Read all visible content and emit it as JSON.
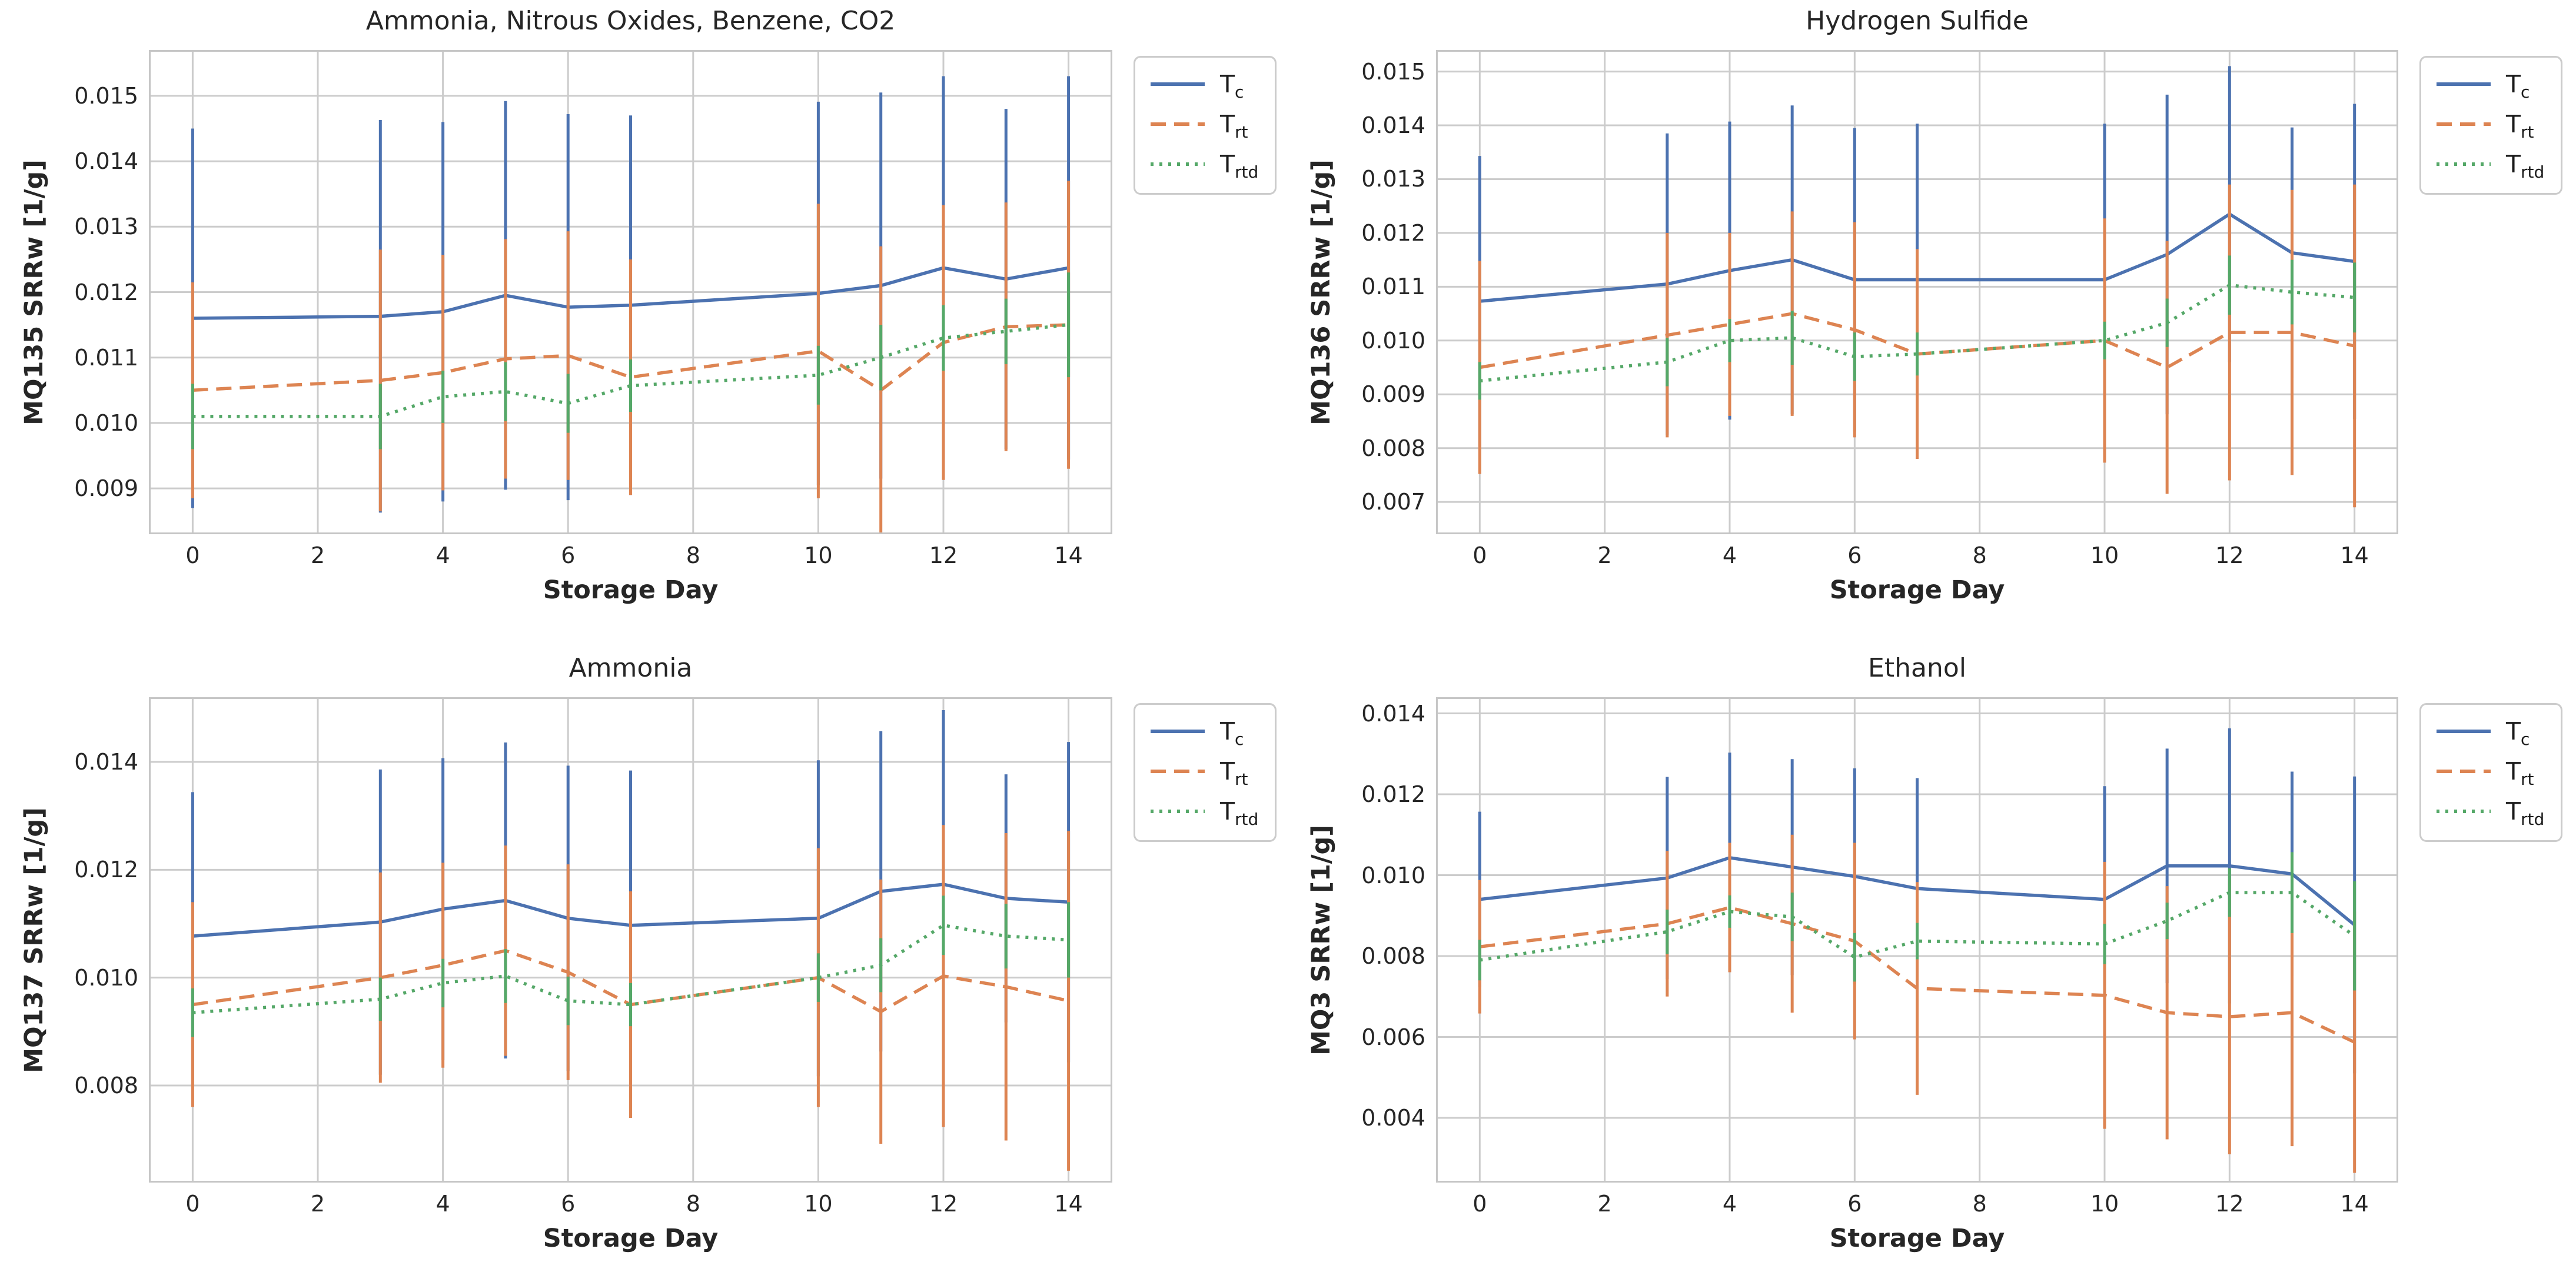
{
  "figure": {
    "background": "#ffffff",
    "grid_color": "#cccccc",
    "spine_color": "#c6c6c6",
    "text_color": "#262626",
    "series_colors": {
      "T_c": "#4C72B0",
      "T_rt": "#DD8452",
      "T_rtd": "#55A868"
    }
  },
  "legend": {
    "items": [
      {
        "name": "T_c",
        "main": "T",
        "sub": "c",
        "color": "#4C72B0",
        "style": "solid"
      },
      {
        "name": "T_rt",
        "main": "T",
        "sub": "rt",
        "color": "#DD8452",
        "style": "dashed"
      },
      {
        "name": "T_rtd",
        "main": "T",
        "sub": "rtd",
        "color": "#55A868",
        "style": "dotted"
      }
    ]
  },
  "x_tick_labels": [
    "0",
    "2",
    "4",
    "6",
    "8",
    "10",
    "12",
    "14"
  ],
  "x_ticks": [
    0,
    2,
    4,
    6,
    8,
    10,
    12,
    14
  ],
  "chart_data": [
    {
      "type": "line",
      "title": "Ammonia, Nitrous Oxides, Benzene, CO2",
      "ylabel": "MQ135 SRRw [1/g]",
      "xlabel": "Storage Day",
      "x": [
        0,
        3,
        4,
        5,
        6,
        7,
        10,
        11,
        12,
        13,
        14
      ],
      "xlim": [
        -0.7,
        14.7
      ],
      "ylim": [
        0.0083,
        0.0157
      ],
      "yticks": [
        0.009,
        0.01,
        0.011,
        0.012,
        0.013,
        0.014,
        0.015
      ],
      "ytick_labels": [
        "0.009",
        "0.010",
        "0.011",
        "0.012",
        "0.013",
        "0.014",
        "0.015"
      ],
      "grid": true,
      "legend_position": "outside-upper-right",
      "series": [
        {
          "name": "T_c",
          "style": "solid",
          "color": "#4C72B0",
          "values": [
            0.0116,
            0.01163,
            0.0117,
            0.01195,
            0.01177,
            0.0118,
            0.01198,
            0.0121,
            0.01237,
            0.0122,
            0.01237
          ],
          "err": [
            0.0029,
            0.003,
            0.0029,
            0.00297,
            0.00295,
            0.0029,
            0.00293,
            0.00295,
            0.00293,
            0.0026,
            0.00293
          ]
        },
        {
          "name": "T_rt",
          "style": "dashed",
          "color": "#DD8452",
          "values": [
            0.0105,
            0.01065,
            0.01077,
            0.01098,
            0.01103,
            0.0107,
            0.0111,
            0.0105,
            0.01123,
            0.01147,
            0.0115
          ],
          "err": [
            0.00165,
            0.002,
            0.0018,
            0.00183,
            0.0019,
            0.0018,
            0.00225,
            0.0022,
            0.0021,
            0.0019,
            0.0022
          ]
        },
        {
          "name": "T_rtd",
          "style": "dotted",
          "color": "#55A868",
          "values": [
            0.0101,
            0.0101,
            0.0104,
            0.01048,
            0.0103,
            0.01057,
            0.01073,
            0.011,
            0.0113,
            0.0114,
            0.0115
          ],
          "err": [
            0.0005,
            0.0005,
            0.0004,
            0.00045,
            0.00045,
            0.0004,
            0.00045,
            0.0005,
            0.0005,
            0.0005,
            0.0008
          ]
        }
      ]
    },
    {
      "type": "line",
      "title": "Hydrogen Sulfide",
      "ylabel": "MQ136 SRRw [1/g]",
      "xlabel": "Storage Day",
      "x": [
        0,
        3,
        4,
        5,
        6,
        7,
        10,
        11,
        12,
        13,
        14
      ],
      "xlim": [
        -0.7,
        14.7
      ],
      "ylim": [
        0.0064,
        0.0154
      ],
      "yticks": [
        0.007,
        0.008,
        0.009,
        0.01,
        0.011,
        0.012,
        0.013,
        0.014,
        0.015
      ],
      "ytick_labels": [
        "0.007",
        "0.008",
        "0.009",
        "0.010",
        "0.011",
        "0.012",
        "0.013",
        "0.014",
        "0.015"
      ],
      "grid": true,
      "legend_position": "outside-upper-right",
      "series": [
        {
          "name": "T_c",
          "style": "solid",
          "color": "#4C72B0",
          "values": [
            0.01073,
            0.01105,
            0.0113,
            0.0115,
            0.01113,
            0.01113,
            0.01113,
            0.0116,
            0.01235,
            0.01163,
            0.01147
          ],
          "err": [
            0.0027,
            0.0028,
            0.00277,
            0.00287,
            0.00282,
            0.0029,
            0.0029,
            0.00297,
            0.00275,
            0.00233,
            0.00293
          ]
        },
        {
          "name": "T_rt",
          "style": "dashed",
          "color": "#DD8452",
          "values": [
            0.0095,
            0.0101,
            0.0103,
            0.0105,
            0.0102,
            0.00975,
            0.01,
            0.0095,
            0.01015,
            0.01015,
            0.0099
          ],
          "err": [
            0.00198,
            0.0019,
            0.0017,
            0.0019,
            0.002,
            0.00195,
            0.00227,
            0.00235,
            0.00275,
            0.00265,
            0.003
          ]
        },
        {
          "name": "T_rtd",
          "style": "dotted",
          "color": "#55A868",
          "values": [
            0.00925,
            0.0096,
            0.01,
            0.01005,
            0.0097,
            0.00975,
            0.01,
            0.01033,
            0.01103,
            0.0109,
            0.0108
          ],
          "err": [
            0.00035,
            0.00045,
            0.0004,
            0.0005,
            0.00045,
            0.0004,
            0.00035,
            0.00045,
            0.00055,
            0.0006,
            0.00065
          ]
        }
      ]
    },
    {
      "type": "line",
      "title": "Ammonia",
      "ylabel": "MQ137 SRRw [1/g]",
      "xlabel": "Storage Day",
      "x": [
        0,
        3,
        4,
        5,
        6,
        7,
        10,
        11,
        12,
        13,
        14
      ],
      "xlim": [
        -0.7,
        14.7
      ],
      "ylim": [
        0.0062,
        0.0152
      ],
      "yticks": [
        0.008,
        0.01,
        0.012,
        0.014
      ],
      "ytick_labels": [
        "0.008",
        "0.010",
        "0.012",
        "0.014"
      ],
      "grid": true,
      "legend_position": "outside-upper-right",
      "series": [
        {
          "name": "T_c",
          "style": "solid",
          "color": "#4C72B0",
          "values": [
            0.01077,
            0.01103,
            0.01127,
            0.01143,
            0.0111,
            0.01097,
            0.0111,
            0.0116,
            0.01173,
            0.01147,
            0.0114
          ],
          "err": [
            0.00267,
            0.00283,
            0.0028,
            0.00293,
            0.00283,
            0.00287,
            0.00293,
            0.00297,
            0.00323,
            0.0023,
            0.00297
          ]
        },
        {
          "name": "T_rt",
          "style": "dashed",
          "color": "#DD8452",
          "values": [
            0.0095,
            0.01,
            0.01023,
            0.0105,
            0.0101,
            0.0095,
            0.01,
            0.00937,
            0.01003,
            0.00983,
            0.00957
          ],
          "err": [
            0.0019,
            0.00195,
            0.0019,
            0.00195,
            0.002,
            0.0021,
            0.0024,
            0.00245,
            0.0028,
            0.00285,
            0.00315
          ]
        },
        {
          "name": "T_rtd",
          "style": "dotted",
          "color": "#55A868",
          "values": [
            0.00935,
            0.0096,
            0.0099,
            0.01003,
            0.00957,
            0.0095,
            0.01,
            0.01023,
            0.01097,
            0.01077,
            0.0107
          ],
          "err": [
            0.00045,
            0.0004,
            0.00045,
            0.0005,
            0.00045,
            0.0004,
            0.00045,
            0.0005,
            0.00055,
            0.0006,
            0.0007
          ]
        }
      ]
    },
    {
      "type": "line",
      "title": "Ethanol",
      "ylabel": "MQ3 SRRw [1/g]",
      "xlabel": "Storage Day",
      "x": [
        0,
        3,
        4,
        5,
        6,
        7,
        10,
        11,
        12,
        13,
        14
      ],
      "xlim": [
        -0.7,
        14.7
      ],
      "ylim": [
        0.0024,
        0.0144
      ],
      "yticks": [
        0.004,
        0.006,
        0.008,
        0.01,
        0.012,
        0.014
      ],
      "ytick_labels": [
        "0.004",
        "0.006",
        "0.008",
        "0.010",
        "0.012",
        "0.014"
      ],
      "grid": true,
      "legend_position": "outside-upper-right",
      "series": [
        {
          "name": "T_c",
          "style": "solid",
          "color": "#4C72B0",
          "values": [
            0.0094,
            0.00993,
            0.01043,
            0.0102,
            0.00997,
            0.00967,
            0.0094,
            0.01023,
            0.01023,
            0.01003,
            0.00877
          ],
          "err": [
            0.00217,
            0.0025,
            0.0026,
            0.00267,
            0.00267,
            0.00273,
            0.0028,
            0.0029,
            0.0034,
            0.00253,
            0.00367
          ]
        },
        {
          "name": "T_rt",
          "style": "dashed",
          "color": "#DD8452",
          "values": [
            0.00823,
            0.0088,
            0.0092,
            0.0088,
            0.00837,
            0.0072,
            0.00703,
            0.0066,
            0.0065,
            0.0066,
            0.00587
          ],
          "err": [
            0.00165,
            0.0018,
            0.0016,
            0.0022,
            0.00243,
            0.00263,
            0.0033,
            0.00313,
            0.0034,
            0.0033,
            0.00323
          ]
        },
        {
          "name": "T_rtd",
          "style": "dotted",
          "color": "#55A868",
          "values": [
            0.0079,
            0.0086,
            0.0091,
            0.00897,
            0.00797,
            0.00837,
            0.0083,
            0.00887,
            0.00957,
            0.00957,
            0.0085
          ],
          "err": [
            0.0005,
            0.00055,
            0.0004,
            0.0006,
            0.0006,
            0.00045,
            0.0005,
            0.00045,
            0.0006,
            0.001,
            0.00135
          ]
        }
      ]
    }
  ]
}
